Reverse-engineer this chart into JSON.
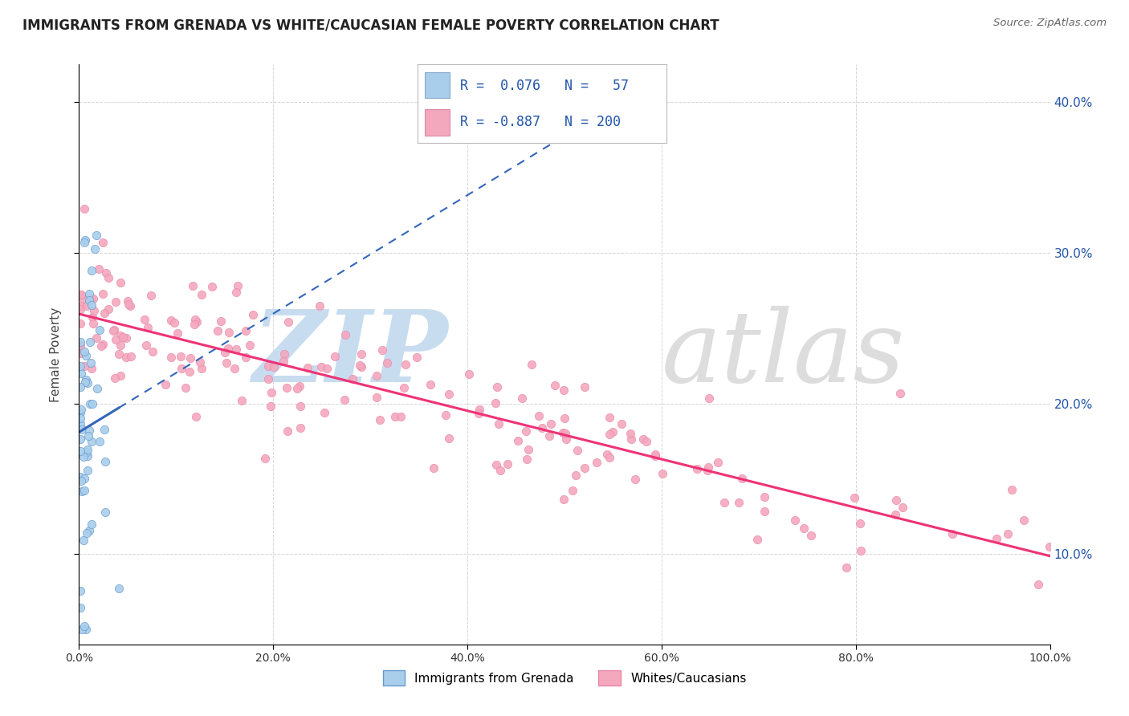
{
  "title": "IMMIGRANTS FROM GRENADA VS WHITE/CAUCASIAN FEMALE POVERTY CORRELATION CHART",
  "source": "Source: ZipAtlas.com",
  "ylabel": "Female Poverty",
  "xlim": [
    0,
    1.0
  ],
  "ylim": [
    0.04,
    0.425
  ],
  "xticklabels": [
    "0.0%",
    "20.0%",
    "40.0%",
    "60.0%",
    "80.0%",
    "100.0%"
  ],
  "ytick_positions": [
    0.1,
    0.2,
    0.3,
    0.4
  ],
  "ytick_labels": [
    "10.0%",
    "20.0%",
    "30.0%",
    "40.0%"
  ],
  "color_blue": "#A8CEEC",
  "color_pink": "#F4A8BE",
  "color_blue_line": "#3366BB",
  "color_pink_line": "#EE3377",
  "watermark_zip_color": "#C8DCF0",
  "watermark_atlas_color": "#DDDDDD",
  "background_color": "#FFFFFF",
  "grid_color": "#CCCCCC",
  "title_fontsize": 12,
  "axis_label_color": "#2255AA",
  "seed": 12345
}
